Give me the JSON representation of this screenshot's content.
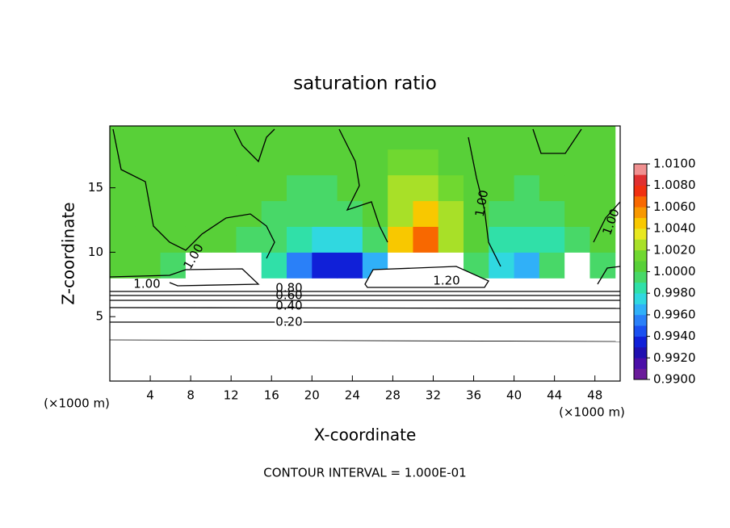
{
  "chart_data": {
    "type": "heatmap",
    "title": "saturation ratio",
    "x_label": "X-coordinate",
    "y_label": "Z-coordinate",
    "x_unit": "(×1000 m)",
    "y_unit": "(×1000 m)",
    "footer": "CONTOUR INTERVAL = 1.000E-01",
    "x": [
      1.25,
      3.75,
      6.25,
      8.75,
      11.25,
      13.75,
      16.25,
      18.75,
      21.25,
      23.75,
      26.25,
      28.75,
      31.25,
      33.75,
      36.25,
      38.75,
      41.25,
      43.75,
      46.25,
      48.75
    ],
    "y": [
      1,
      3,
      5,
      7,
      9,
      11,
      13,
      15,
      17,
      19
    ],
    "values": [
      [
        0.1,
        0.1,
        0.1,
        0.1,
        0.1,
        0.1,
        0.1,
        0.1,
        0.1,
        0.1,
        0.1,
        0.1,
        0.1,
        0.1,
        0.1,
        0.1,
        0.1,
        0.1,
        0.1,
        0.1
      ],
      [
        0.15,
        0.15,
        0.15,
        0.15,
        0.15,
        0.15,
        0.15,
        0.15,
        0.15,
        0.15,
        0.15,
        0.15,
        0.15,
        0.15,
        0.15,
        0.15,
        0.15,
        0.15,
        0.15,
        0.15
      ],
      [
        0.25,
        0.25,
        0.25,
        0.25,
        0.25,
        0.25,
        0.25,
        0.25,
        0.25,
        0.25,
        0.25,
        0.25,
        0.25,
        0.25,
        0.25,
        0.25,
        0.25,
        0.25,
        0.25,
        0.25
      ],
      [
        0.6,
        0.6,
        0.6,
        0.6,
        0.6,
        0.6,
        0.6,
        0.6,
        0.6,
        0.6,
        0.6,
        0.6,
        0.6,
        0.6,
        0.6,
        0.6,
        0.6,
        0.6,
        0.6,
        0.6
      ],
      [
        1.0,
        1.0,
        0.9995,
        1.2,
        1.2,
        1.2,
        0.9985,
        0.995,
        0.993,
        0.993,
        0.996,
        1.2,
        1.2,
        1.2,
        0.999,
        0.997,
        0.996,
        0.999,
        1.2,
        0.9995
      ],
      [
        1.0005,
        1.0005,
        1.0,
        1.0005,
        1.0,
        0.9995,
        0.999,
        0.998,
        0.997,
        0.9975,
        0.999,
        1.004,
        1.006,
        1.003,
        1.0005,
        0.9985,
        0.998,
        0.9985,
        0.999,
        1.0
      ],
      [
        1.001,
        1.0005,
        1.0005,
        1.0005,
        1.0,
        1.0,
        0.9995,
        0.999,
        0.999,
        0.9995,
        1.001,
        1.003,
        1.004,
        1.002,
        1.001,
        0.9995,
        0.999,
        0.9995,
        1.0,
        1.0005
      ],
      [
        1.0005,
        1.001,
        1.001,
        1.0005,
        1.0005,
        1.0,
        1.0,
        0.9995,
        0.9995,
        1.0005,
        1.001,
        1.002,
        1.002,
        1.0015,
        1.001,
        1.0005,
        0.9995,
        1.0,
        1.0005,
        1.0005
      ],
      [
        1.0005,
        1.001,
        1.001,
        1.0005,
        1.0005,
        1.0005,
        1.0,
        1.0,
        1.0005,
        1.0005,
        1.001,
        1.0015,
        1.0015,
        1.001,
        1.001,
        1.0005,
        1.0,
        1.0005,
        1.0005,
        1.0005
      ],
      [
        1.0005,
        1.0005,
        1.001,
        1.0005,
        1.0005,
        1.0005,
        1.0005,
        1.0005,
        1.0005,
        1.0005,
        1.0005,
        1.001,
        1.001,
        1.001,
        1.0005,
        1.0005,
        1.0005,
        1.0005,
        1.0005,
        1.0005
      ]
    ],
    "xlim": [
      0,
      50.5
    ],
    "ylim": [
      0,
      19.8
    ],
    "xticks": [
      4,
      8,
      12,
      16,
      20,
      24,
      28,
      32,
      36,
      40,
      44,
      48
    ],
    "yticks": [
      5,
      10,
      15
    ],
    "zlim": [
      0.99,
      1.01
    ],
    "colors": [
      "#6a1b9a",
      "#4b0fa8",
      "#2010b0",
      "#1020d8",
      "#1a50f0",
      "#2a80f8",
      "#30b0f8",
      "#30d8e0",
      "#30e0a8",
      "#48d868",
      "#58d038",
      "#70d830",
      "#a8e028",
      "#e8e820",
      "#f8c800",
      "#f89800",
      "#f86800",
      "#f03010",
      "#e03030",
      "#f09090"
    ],
    "colorbar_ticks": [
      {
        "value": 0.99,
        "label": "0.9900"
      },
      {
        "value": 0.992,
        "label": "0.9920"
      },
      {
        "value": 0.994,
        "label": "0.9940"
      },
      {
        "value": 0.996,
        "label": "0.9960"
      },
      {
        "value": 0.998,
        "label": "0.9980"
      },
      {
        "value": 1.0,
        "label": "1.0000"
      },
      {
        "value": 1.002,
        "label": "1.0020"
      },
      {
        "value": 1.004,
        "label": "1.0040"
      },
      {
        "value": 1.006,
        "label": "1.0060"
      },
      {
        "value": 1.008,
        "label": "1.0080"
      },
      {
        "value": 1.01,
        "label": "1.0100"
      }
    ],
    "contour_labels": [
      "1.00",
      "0.60",
      "0.40",
      "0.20",
      "1.20",
      "1.00",
      "1.00",
      "1.00",
      "0.80"
    ]
  }
}
